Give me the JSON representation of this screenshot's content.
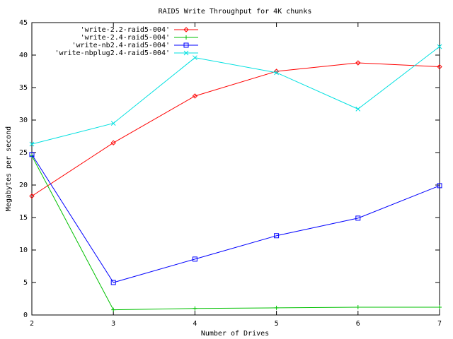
{
  "chart_data": {
    "type": "line",
    "title": "RAID5 Write Throughput for 4K chunks",
    "xlabel": "Number of Drives",
    "ylabel": "Megabytes per second",
    "x": [
      2,
      3,
      4,
      5,
      6,
      7
    ],
    "xlim": [
      2,
      7
    ],
    "xticks": [
      2,
      3,
      4,
      5,
      6,
      7
    ],
    "ylim": [
      0,
      45
    ],
    "yticks": [
      0,
      5,
      10,
      15,
      20,
      25,
      30,
      35,
      40,
      45
    ],
    "legend": "upper left",
    "series": [
      {
        "name": "'write-2.2-raid5-004'",
        "color": "#ff0000",
        "marker": "diamond",
        "values": [
          18.3,
          26.5,
          33.7,
          37.5,
          38.8,
          38.2
        ]
      },
      {
        "name": "'write-2.4-raid5-004'",
        "color": "#00c000",
        "marker": "plus",
        "values": [
          24.5,
          0.8,
          1.0,
          1.1,
          1.2,
          1.2
        ]
      },
      {
        "name": "'write-nb2.4-raid5-004'",
        "color": "#0000ff",
        "marker": "square",
        "values": [
          24.7,
          5.0,
          8.6,
          12.2,
          14.9,
          19.9
        ]
      },
      {
        "name": "'write-nbplug2.4-raid5-004'",
        "color": "#00e0e0",
        "marker": "cross",
        "values": [
          26.3,
          29.5,
          39.6,
          37.3,
          31.7,
          41.3
        ]
      }
    ]
  }
}
